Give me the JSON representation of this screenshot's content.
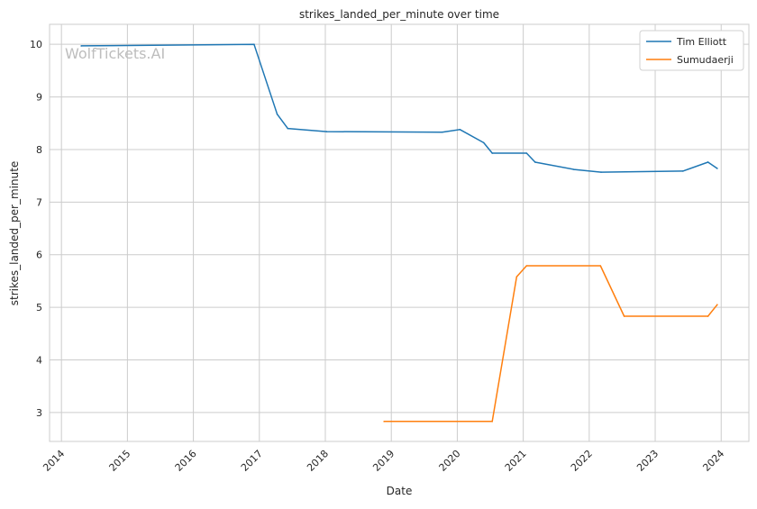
{
  "chart_data": {
    "type": "line",
    "title": "strikes_landed_per_minute over time",
    "xlabel": "Date",
    "ylabel": "strikes_landed_per_minute",
    "xlim": [
      2013.82,
      2024.42
    ],
    "ylim": [
      2.45,
      10.38
    ],
    "xticks": [
      2014,
      2015,
      2016,
      2017,
      2018,
      2019,
      2020,
      2021,
      2022,
      2023,
      2024
    ],
    "xtick_labels": [
      "2014",
      "2015",
      "2016",
      "2017",
      "2018",
      "2019",
      "2020",
      "2021",
      "2022",
      "2023",
      "2024"
    ],
    "yticks": [
      3,
      4,
      5,
      6,
      7,
      8,
      9,
      10
    ],
    "ytick_labels": [
      "3",
      "4",
      "5",
      "6",
      "7",
      "8",
      "9",
      "10"
    ],
    "grid": true,
    "legend_position": "top-right",
    "watermark": "WolfTickets.AI",
    "series": [
      {
        "name": "Tim Elliott",
        "color": "#1f77b4",
        "x": [
          2014.3,
          2016.92,
          2017.27,
          2017.43,
          2018.02,
          2019.77,
          2020.04,
          2020.4,
          2020.53,
          2021.05,
          2021.18,
          2021.77,
          2022.18,
          2023.42,
          2023.8,
          2023.94
        ],
        "y": [
          9.97,
          10.0,
          8.67,
          8.4,
          8.34,
          8.33,
          8.38,
          8.13,
          7.93,
          7.93,
          7.76,
          7.62,
          7.57,
          7.59,
          7.76,
          7.64
        ]
      },
      {
        "name": "Sumudaerji",
        "color": "#ff7f0e",
        "x": [
          2018.89,
          2020.53,
          2020.9,
          2021.05,
          2022.17,
          2022.53,
          2023.8,
          2023.94
        ],
        "y": [
          2.83,
          2.83,
          5.58,
          5.79,
          5.79,
          4.83,
          4.83,
          5.05
        ]
      }
    ]
  }
}
